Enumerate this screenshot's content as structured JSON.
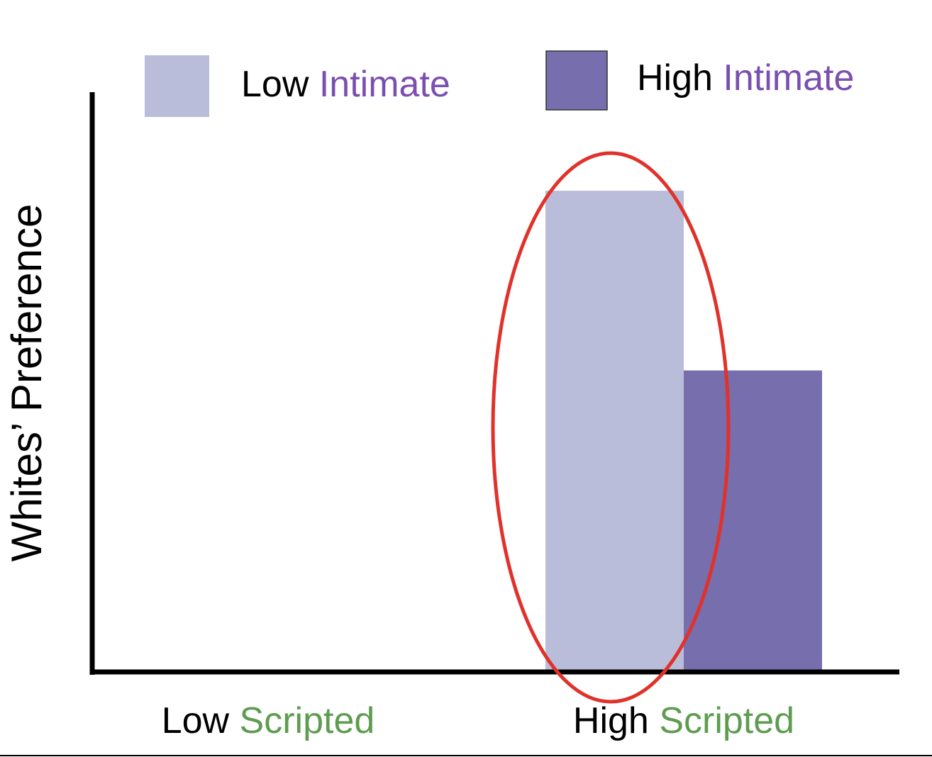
{
  "chart_data": {
    "type": "bar",
    "ylabel": "Whites’ Preference",
    "categories": [
      "Low Scripted",
      "High Scripted"
    ],
    "series": [
      {
        "name": "Low Intimate",
        "color": "#babdda",
        "values": [
          null,
          83
        ]
      },
      {
        "name": "High Intimate",
        "color": "#776eae",
        "values": [
          null,
          52
        ]
      }
    ],
    "ylim": [
      0,
      100
    ]
  }
}
